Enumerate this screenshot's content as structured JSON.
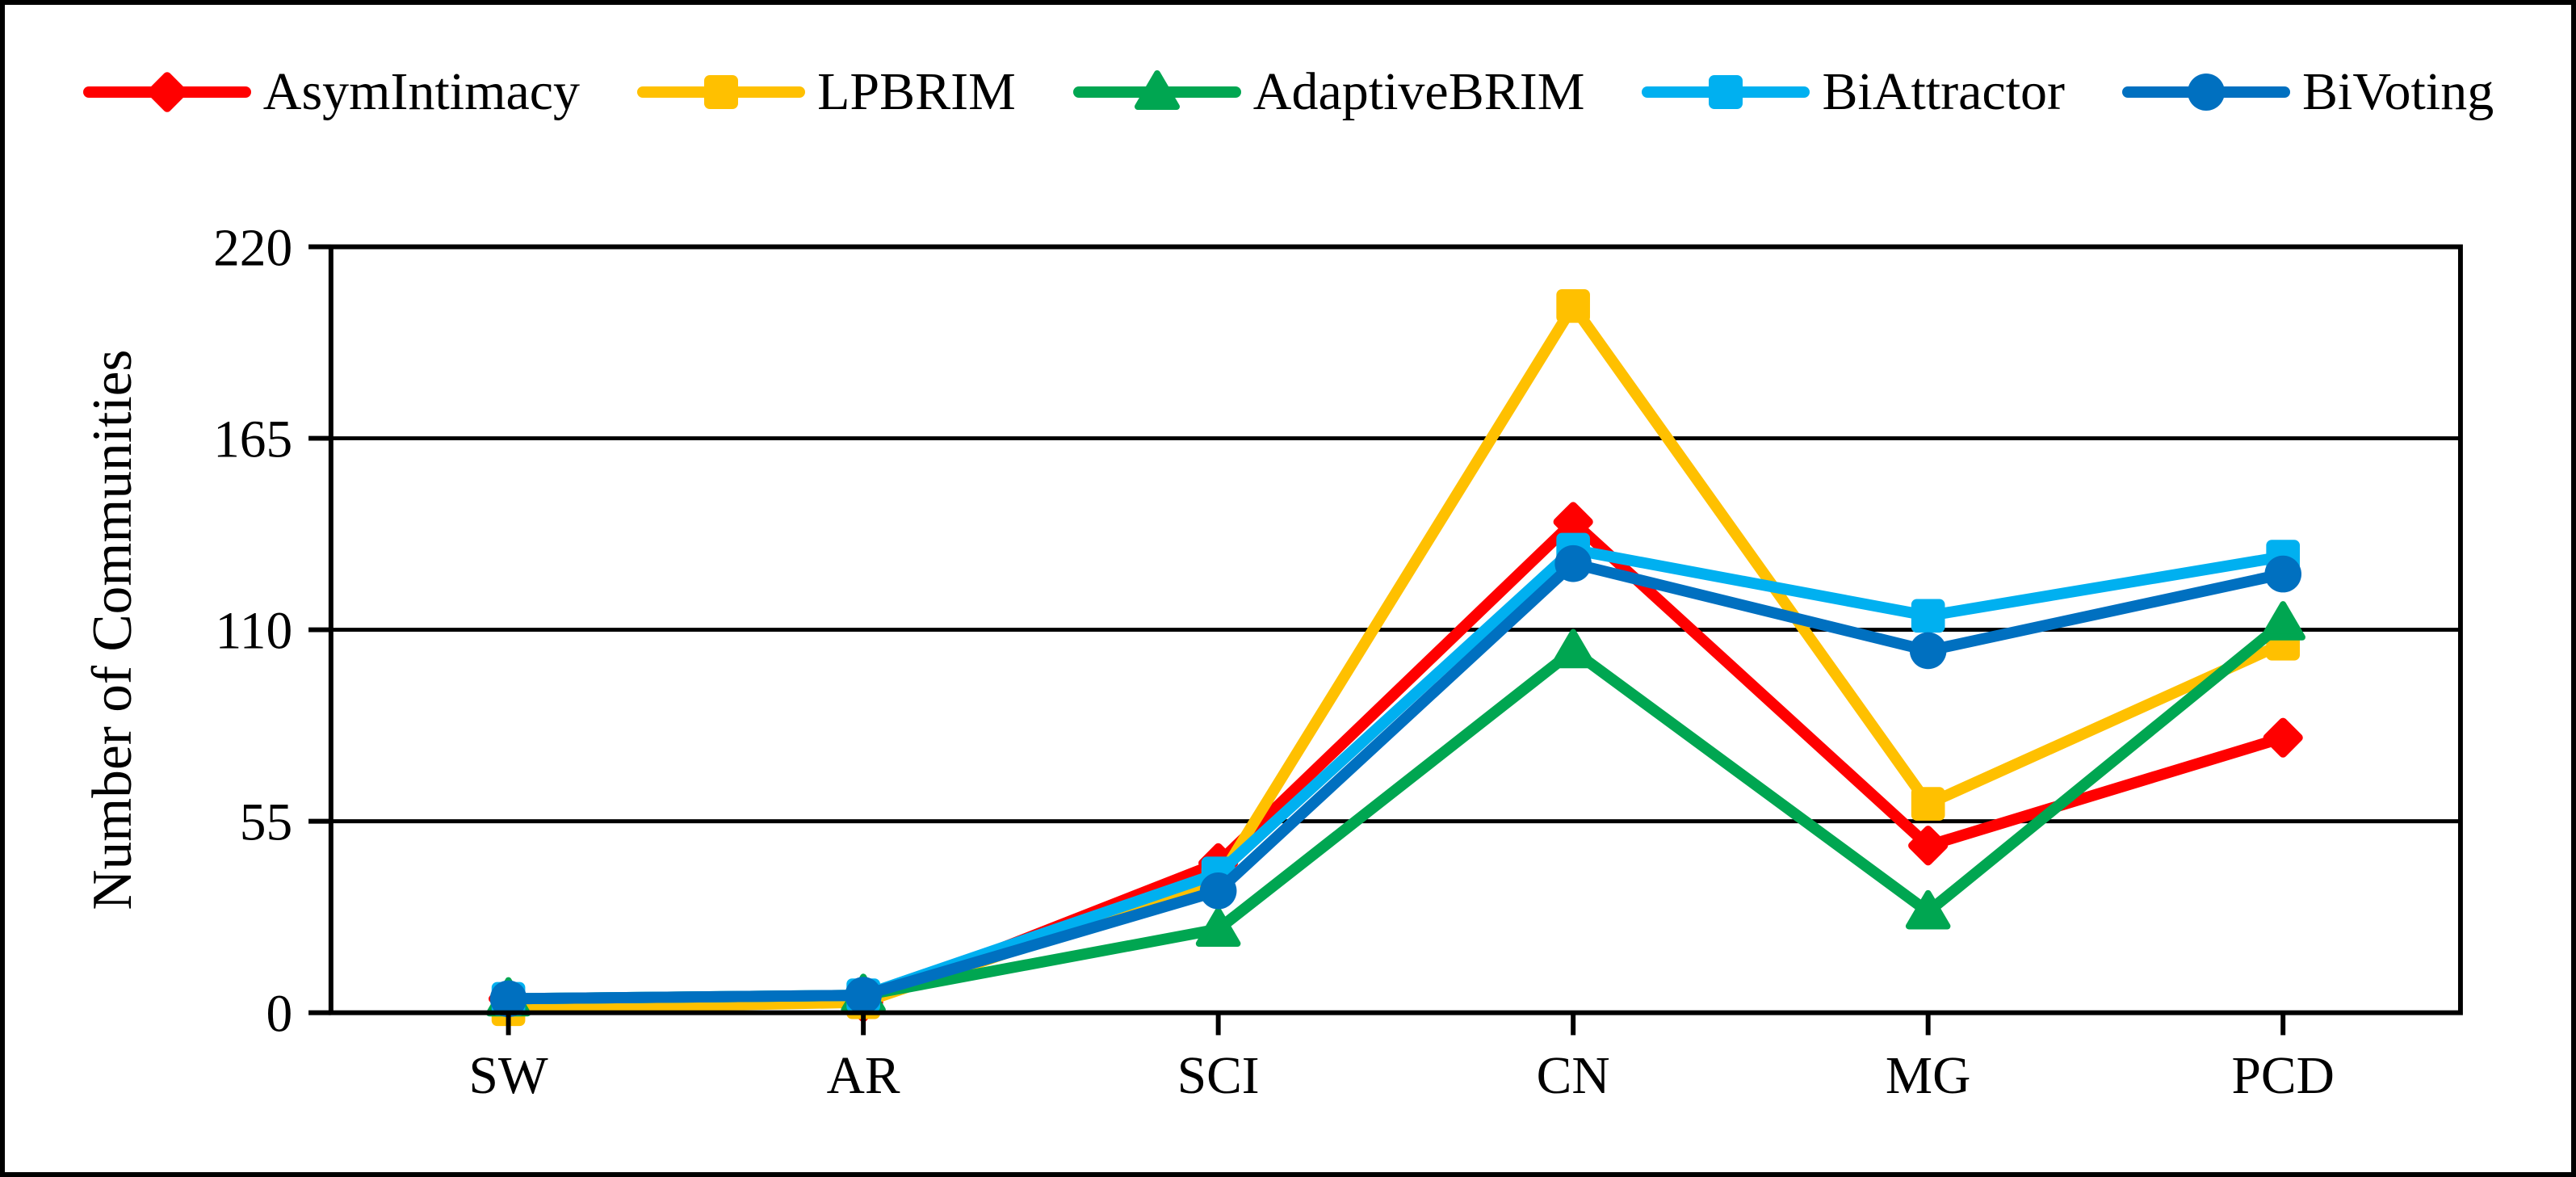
{
  "figure": {
    "background_color": "#FFFFFF",
    "frame_color": "#000000"
  },
  "chart_data": {
    "type": "line",
    "title": "",
    "xlabel": "",
    "ylabel": "Number of Communities",
    "categories": [
      "SW",
      "AR",
      "SCI",
      "CN",
      "MG",
      "PCD"
    ],
    "ylim": [
      0,
      220
    ],
    "yticks": [
      0,
      55,
      110,
      165,
      220
    ],
    "grid": true,
    "grid_color": "#000000",
    "legend_position": "top",
    "series": [
      {
        "name": "AsymIntimacy",
        "color": "#FF0000",
        "marker": "diamond",
        "values": [
          4,
          3,
          43,
          141,
          48,
          79
        ]
      },
      {
        "name": "LPBRIM",
        "color": "#FFC000",
        "marker": "square",
        "values": [
          1,
          3,
          38,
          203,
          60,
          106
        ]
      },
      {
        "name": "AdaptiveBRIM",
        "color": "#00A651",
        "marker": "triangle",
        "values": [
          4,
          5,
          24,
          104,
          29,
          112
        ]
      },
      {
        "name": "BiAttractor",
        "color": "#00B0F0",
        "marker": "square",
        "values": [
          4,
          5,
          40,
          133,
          114,
          131
        ]
      },
      {
        "name": "BiVoting",
        "color": "#0070C0",
        "marker": "circle",
        "values": [
          4,
          5,
          35,
          129,
          104,
          126
        ]
      }
    ]
  }
}
